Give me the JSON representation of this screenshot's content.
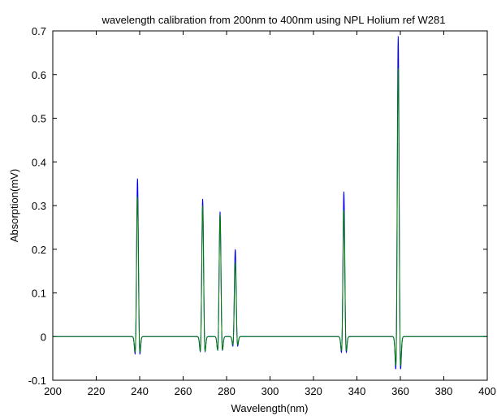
{
  "chart_data": {
    "type": "line",
    "title": "wavelength calibration from 200nm to 400nm using NPL Holium ref W281",
    "xlabel": "Wavelength(nm)",
    "ylabel": "Absorption(mV)",
    "xlim": [
      200,
      400
    ],
    "ylim": [
      -0.1,
      0.7
    ],
    "x_ticks": [
      200,
      220,
      240,
      260,
      280,
      300,
      320,
      340,
      360,
      380,
      400
    ],
    "y_ticks": [
      -0.1,
      0,
      0.1,
      0.2,
      0.3,
      0.4,
      0.5,
      0.6,
      0.7
    ],
    "grid": false,
    "legend": "none",
    "series": [
      {
        "color": "#0000ff",
        "peaks": [
          {
            "x": 239,
            "y": 0.362
          },
          {
            "x": 269,
            "y": 0.315
          },
          {
            "x": 277,
            "y": 0.286
          },
          {
            "x": 284,
            "y": 0.2
          },
          {
            "x": 334,
            "y": 0.332
          },
          {
            "x": 359,
            "y": 0.688
          }
        ]
      },
      {
        "color": "#008000",
        "peaks": [
          {
            "x": 239,
            "y": 0.32
          },
          {
            "x": 269,
            "y": 0.3
          },
          {
            "x": 277,
            "y": 0.28
          },
          {
            "x": 284,
            "y": 0.17
          },
          {
            "x": 334,
            "y": 0.29
          },
          {
            "x": 359,
            "y": 0.615
          }
        ]
      }
    ]
  }
}
